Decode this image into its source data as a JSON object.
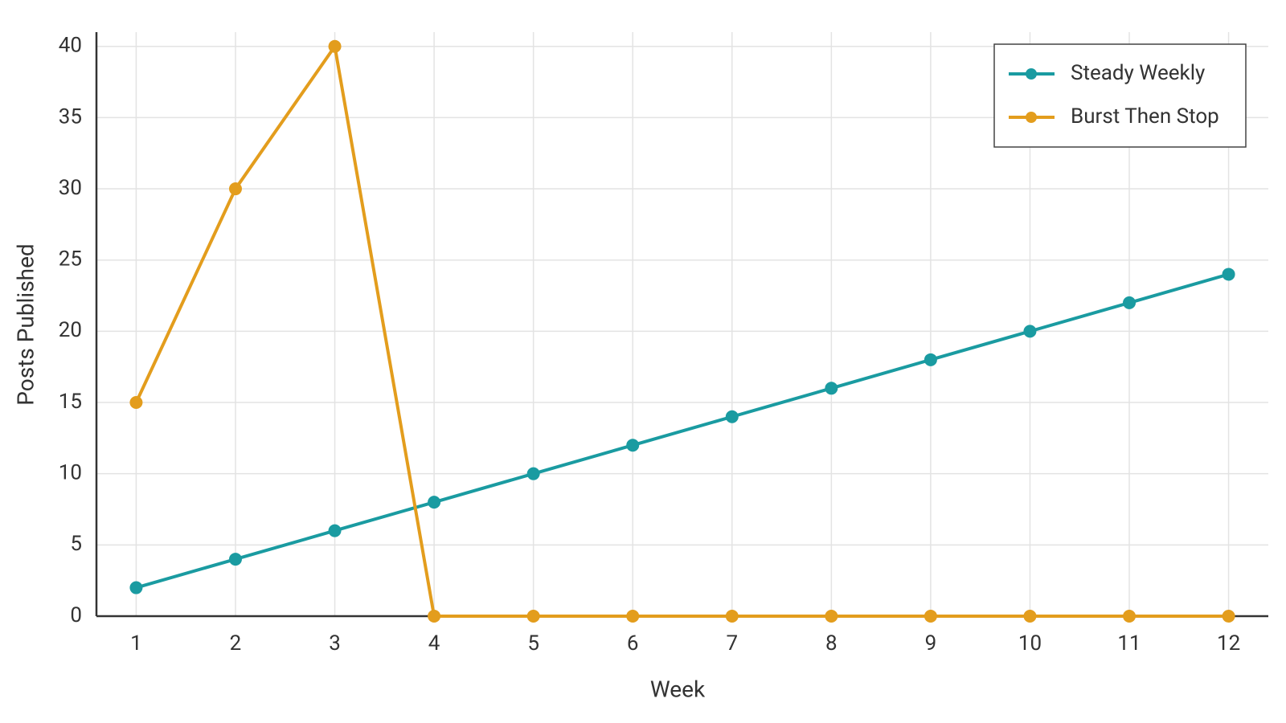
{
  "chart_data": {
    "type": "line",
    "x_label": "Week",
    "y_label": "Posts Published",
    "x": [
      1,
      2,
      3,
      4,
      5,
      6,
      7,
      8,
      9,
      10,
      11,
      12
    ],
    "series": [
      {
        "name": "Steady Weekly",
        "color": "#1a9ba1",
        "values": [
          2,
          4,
          6,
          8,
          10,
          12,
          14,
          16,
          18,
          20,
          22,
          24
        ]
      },
      {
        "name": "Burst Then Stop",
        "color": "#e39d1d",
        "values": [
          15,
          30,
          40,
          0,
          0,
          0,
          0,
          0,
          0,
          0,
          0,
          0
        ]
      }
    ],
    "xlim": [
      0.6,
      12.4
    ],
    "xticks": [
      1,
      2,
      3,
      4,
      5,
      6,
      7,
      8,
      9,
      10,
      11,
      12
    ],
    "ylim": [
      0,
      41
    ],
    "yticks": [
      0,
      5,
      10,
      15,
      20,
      25,
      30,
      35,
      40
    ],
    "grid": true,
    "legend": "upper right"
  }
}
